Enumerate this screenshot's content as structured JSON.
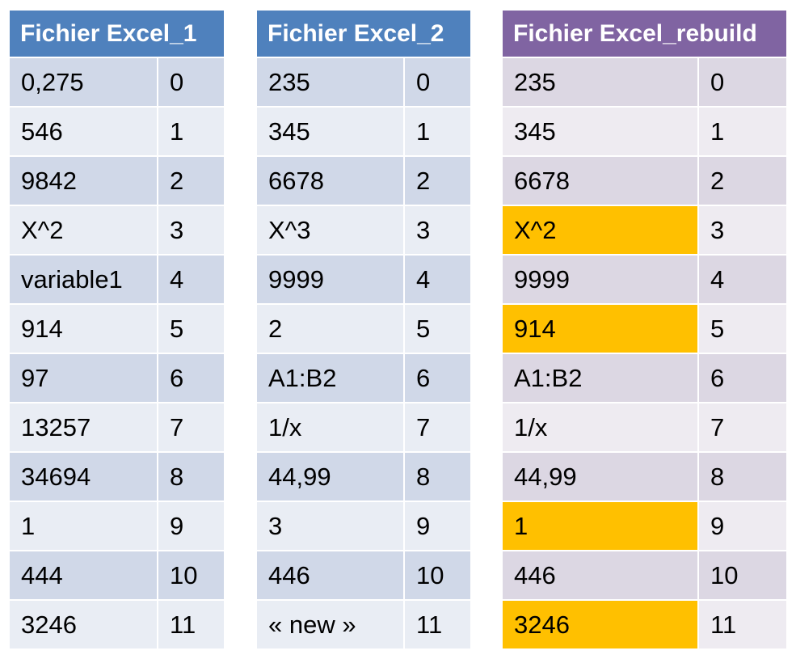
{
  "tables": [
    {
      "title": "Fichier Excel_1",
      "rows": [
        {
          "value": "0,275",
          "index": "0"
        },
        {
          "value": "546",
          "index": "1"
        },
        {
          "value": "9842",
          "index": "2"
        },
        {
          "value": "X^2",
          "index": "3"
        },
        {
          "value": "variable1",
          "index": "4"
        },
        {
          "value": "914",
          "index": "5"
        },
        {
          "value": "97",
          "index": "6"
        },
        {
          "value": "13257",
          "index": "7"
        },
        {
          "value": "34694",
          "index": "8"
        },
        {
          "value": "1",
          "index": "9"
        },
        {
          "value": "444",
          "index": "10"
        },
        {
          "value": "3246",
          "index": "11"
        }
      ]
    },
    {
      "title": "Fichier Excel_2",
      "rows": [
        {
          "value": "235",
          "index": "0"
        },
        {
          "value": "345",
          "index": "1"
        },
        {
          "value": "6678",
          "index": "2"
        },
        {
          "value": "X^3",
          "index": "3"
        },
        {
          "value": "9999",
          "index": "4"
        },
        {
          "value": "2",
          "index": "5"
        },
        {
          "value": "A1:B2",
          "index": "6"
        },
        {
          "value": "1/x",
          "index": "7"
        },
        {
          "value": "44,99",
          "index": "8"
        },
        {
          "value": "3",
          "index": "9"
        },
        {
          "value": "446",
          "index": "10"
        },
        {
          "value": "« new »",
          "index": "11"
        }
      ]
    },
    {
      "title": "Fichier Excel_rebuild",
      "highlight_color": "#ffc000",
      "rows": [
        {
          "value": "235",
          "index": "0",
          "highlighted": false
        },
        {
          "value": "345",
          "index": "1",
          "highlighted": false
        },
        {
          "value": "6678",
          "index": "2",
          "highlighted": false
        },
        {
          "value": "X^2",
          "index": "3",
          "highlighted": true
        },
        {
          "value": "9999",
          "index": "4",
          "highlighted": false
        },
        {
          "value": "914",
          "index": "5",
          "highlighted": true
        },
        {
          "value": "A1:B2",
          "index": "6",
          "highlighted": false
        },
        {
          "value": "1/x",
          "index": "7",
          "highlighted": false
        },
        {
          "value": "44,99",
          "index": "8",
          "highlighted": false
        },
        {
          "value": "1",
          "index": "9",
          "highlighted": true
        },
        {
          "value": "446",
          "index": "10",
          "highlighted": false
        },
        {
          "value": "3246",
          "index": "11",
          "highlighted": true
        }
      ]
    }
  ],
  "colors": {
    "header_blue": "#4f81bd",
    "header_purple": "#8064a2",
    "highlight": "#ffc000"
  }
}
